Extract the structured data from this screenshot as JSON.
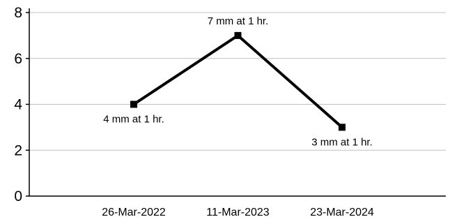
{
  "chart_data": {
    "type": "line",
    "title": "",
    "xlabel": "",
    "ylabel": "",
    "categories": [
      "26-Mar-2022",
      "11-Mar-2023",
      "23-Mar-2024"
    ],
    "series": [
      {
        "values": [
          4,
          7,
          3
        ],
        "data_labels": [
          "4 mm at 1 hr.",
          "7 mm at 1 hr.",
          "3 mm at 1 hr."
        ],
        "color": "#000000",
        "marker": "square"
      }
    ],
    "ylim": [
      0,
      8
    ],
    "yticks": [
      "0",
      "2",
      "4",
      "6",
      "8"
    ],
    "grid": true,
    "gridline_color": "#c0c0c0",
    "legend": "none"
  }
}
